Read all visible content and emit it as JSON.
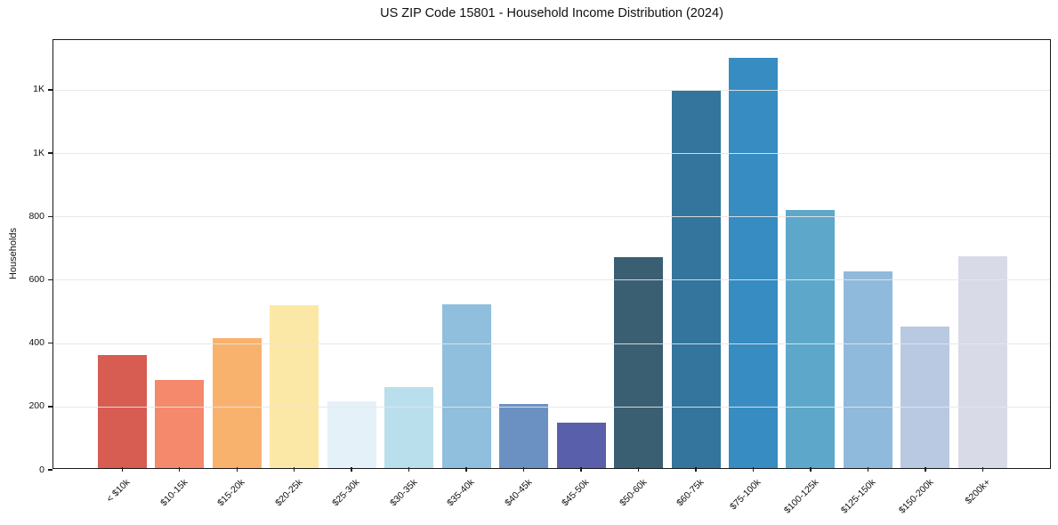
{
  "chart_data": {
    "type": "bar",
    "title": "US ZIP Code 15801 - Household Income Distribution (2024)",
    "xlabel": "",
    "ylabel": "Households",
    "categories": [
      "< $10k",
      "$10-15k",
      "$15-20k",
      "$20-25k",
      "$25-30k",
      "$30-35k",
      "$35-40k",
      "$40-45k",
      "$45-50k",
      "$50-60k",
      "$60-75k",
      "$75-100k",
      "$100-125k",
      "$125-150k",
      "$150-200k",
      "$200k+"
    ],
    "values": [
      357,
      277,
      411,
      515,
      210,
      255,
      518,
      203,
      144,
      667,
      1190,
      1295,
      816,
      622,
      448,
      670
    ],
    "bar_colors": [
      "#d75c51",
      "#f4896b",
      "#f9b26e",
      "#fce8a6",
      "#e4f1f8",
      "#badfec",
      "#90bedd",
      "#6b91c3",
      "#5a5fab",
      "#3a5f72",
      "#33759c",
      "#378cc1",
      "#5da8ca",
      "#90badb",
      "#b9c9e1",
      "#d8dae8"
    ],
    "ylim": [
      0,
      1357
    ],
    "ytick_values": [
      0,
      200,
      400,
      600,
      800,
      1000,
      1200
    ],
    "ytick_labels": [
      "0",
      "200",
      "400",
      "600",
      "800",
      "1K",
      "1K"
    ],
    "x_tick_rotation": 45,
    "grid": "horizontal",
    "legend": "none"
  },
  "colors": {
    "background": "#ffffff",
    "spine": "#1a1a1a",
    "grid": "#e6e6e6",
    "text": "#111111"
  }
}
